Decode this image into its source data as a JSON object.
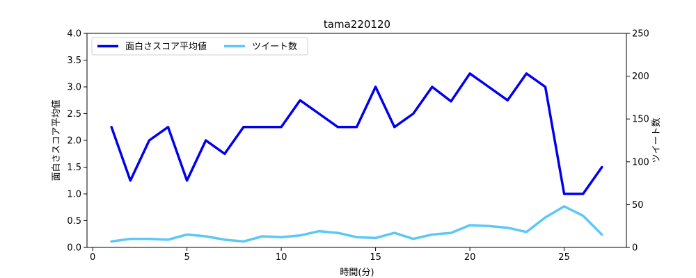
{
  "chart_data": {
    "type": "line",
    "title": "tama220120",
    "xlabel": "時間(分)",
    "ylabel_left": "面白さスコア平均値",
    "ylabel_right": "ツイート数",
    "xlim": [
      -0.3,
      28.3
    ],
    "ylim_left": [
      0,
      4.0
    ],
    "ylim_right": [
      0,
      250
    ],
    "x_ticks": [
      0,
      5,
      10,
      15,
      20,
      25
    ],
    "y_left_ticks": [
      0.0,
      0.5,
      1.0,
      1.5,
      2.0,
      2.5,
      3.0,
      3.5,
      4.0
    ],
    "y_left_tick_labels": [
      "0.0",
      "0.5",
      "1.0",
      "1.5",
      "2.0",
      "2.5",
      "3.0",
      "3.5",
      "4.0"
    ],
    "y_right_ticks": [
      0,
      50,
      100,
      150,
      200,
      250
    ],
    "legend_position": "upper-left",
    "grid": false,
    "x": [
      1,
      2,
      3,
      4,
      5,
      6,
      7,
      8,
      9,
      10,
      11,
      12,
      13,
      14,
      15,
      16,
      17,
      18,
      19,
      20,
      21,
      22,
      23,
      24,
      25,
      26,
      27
    ],
    "series": [
      {
        "name": "面白さスコア平均値",
        "axis": "left",
        "color": "#0000ee",
        "values": [
          2.25,
          1.25,
          2.0,
          2.25,
          1.25,
          2.0,
          1.75,
          2.25,
          2.25,
          2.25,
          2.75,
          2.5,
          2.25,
          2.25,
          3.0,
          2.25,
          2.5,
          3.0,
          2.73,
          3.25,
          3.0,
          2.75,
          3.25,
          3.0,
          1.0,
          1.0,
          1.5
        ]
      },
      {
        "name": "ツイート数",
        "axis": "right",
        "color": "#5bc8f5",
        "values": [
          7,
          10,
          10,
          9,
          15,
          13,
          9,
          7,
          13,
          12,
          14,
          19,
          17,
          12,
          11,
          17,
          10,
          15,
          17,
          26,
          25,
          23,
          18,
          35,
          48,
          37,
          15
        ]
      }
    ]
  }
}
